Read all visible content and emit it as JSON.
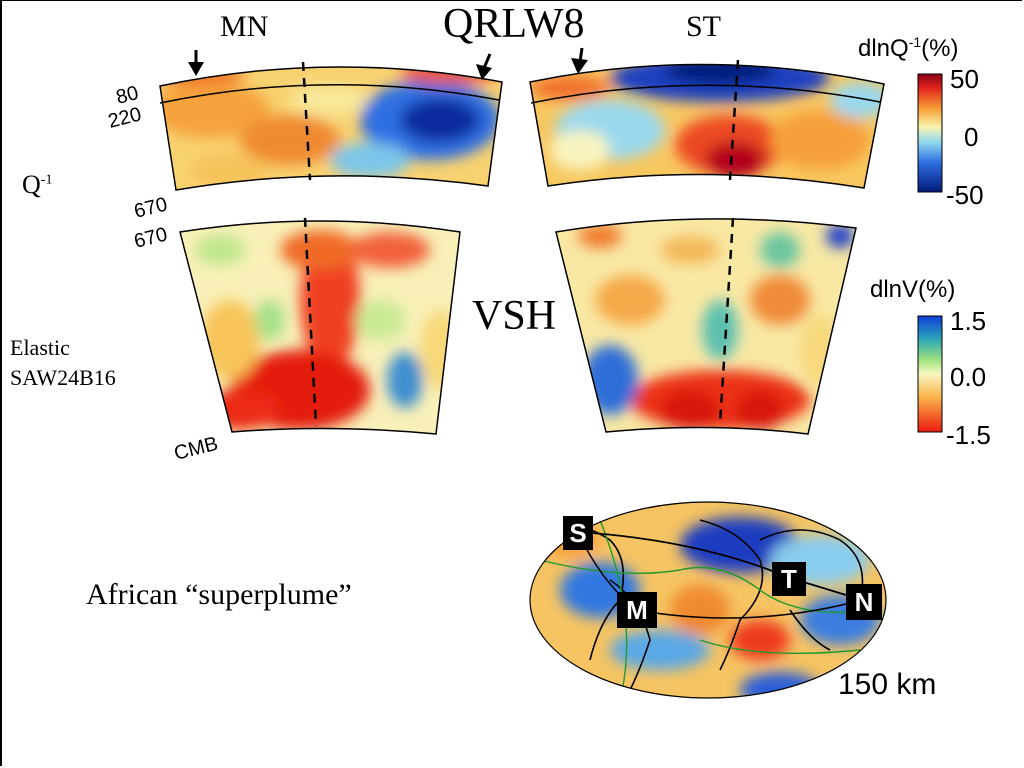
{
  "labels": {
    "model_title": "QRLW8",
    "left_profile": "MN",
    "right_profile": "ST",
    "q_row": "Q",
    "q_row_sup": "-1",
    "elastic_line1": "Elastic",
    "elastic_line2": "SAW24B16",
    "vsh": "VSH",
    "superplume": "African “superplume”",
    "map_depth": "150 km"
  },
  "depth_labels": {
    "d80": "80",
    "d220": "220",
    "d670_upper": "670",
    "d670_lower": "670",
    "cmb": "CMB"
  },
  "colorbar_q": {
    "title_main": "dlnQ",
    "title_sup": "-1",
    "title_unit": "(%)",
    "ticks": [
      "50",
      "0",
      "-50"
    ]
  },
  "colorbar_v": {
    "title": "dlnV(%)",
    "ticks": [
      "1.5",
      "0.0",
      "-1.5"
    ]
  },
  "map_points": {
    "S": "S",
    "M": "M",
    "T": "T",
    "N": "N"
  }
}
